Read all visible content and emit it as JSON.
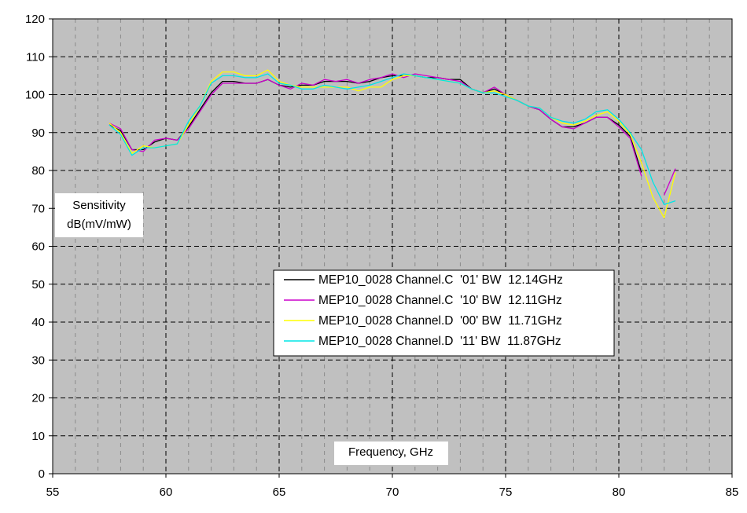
{
  "chart_data": {
    "type": "line",
    "xlabel": "Frequency, GHz",
    "ylabel_lines": [
      "Sensitivity",
      "dB(mV/mW)"
    ],
    "xlim": [
      55,
      85
    ],
    "ylim": [
      0,
      120
    ],
    "x_ticks": [
      "55",
      "60",
      "65",
      "70",
      "75",
      "80",
      "85"
    ],
    "y_ticks": [
      "0",
      "10",
      "20",
      "30",
      "40",
      "50",
      "60",
      "70",
      "80",
      "90",
      "100",
      "110",
      "120"
    ],
    "grid": true,
    "legend_position": "center",
    "plot_background": "#c0c0c0",
    "series": [
      {
        "name": "MEP10_0028 Channel.C  '01' BW  12.14GHz",
        "color": "#000000",
        "x": [
          57.5,
          58,
          58.5,
          59,
          59.5,
          60,
          60.5,
          61,
          61.5,
          62,
          62.5,
          63,
          63.5,
          64,
          64.5,
          65,
          65.5,
          66,
          66.5,
          67,
          67.5,
          68,
          68.5,
          69,
          69.5,
          70,
          70.5,
          71,
          71.5,
          72,
          72.5,
          73,
          73.5,
          74,
          74.5,
          75,
          75.5,
          76,
          76.5,
          77,
          77.5,
          78,
          78.5,
          79,
          79.5,
          80,
          80.5,
          81
        ],
        "y": [
          92,
          90.5,
          85.5,
          85.5,
          87.5,
          88.5,
          88,
          91.5,
          96,
          100.5,
          103.5,
          103.5,
          103,
          103,
          104,
          102.5,
          102,
          102.5,
          102.5,
          103.5,
          103.5,
          103.5,
          103,
          103.5,
          104.5,
          105,
          105,
          105,
          104.5,
          104.5,
          104,
          104,
          101.5,
          100.5,
          101.5,
          100,
          98.5,
          97,
          96,
          93.5,
          91.5,
          91.5,
          92.5,
          94,
          94,
          92,
          89,
          79.5
        ]
      },
      {
        "name": "MEP10_0028 Channel.C  '10' BW  12.11GHz",
        "color": "#cc00cc",
        "x": [
          57.5,
          58,
          58.5,
          59,
          59.5,
          60,
          60.5,
          61,
          61.5,
          62,
          62.5,
          63,
          63.5,
          64,
          64.5,
          65,
          65.5,
          66,
          66.5,
          67,
          67.5,
          68,
          68.5,
          69,
          69.5,
          70,
          70.5,
          71,
          71.5,
          72,
          72.5,
          73,
          73.5,
          74,
          74.5,
          75,
          75.5,
          76,
          76.5,
          77,
          77.5,
          78,
          78.5,
          79,
          79.5,
          80,
          80.5,
          81,
          81.5,
          82,
          82.5
        ],
        "y": [
          92.5,
          91,
          85.5,
          85,
          88,
          88.5,
          88,
          91,
          95.5,
          100,
          103,
          103,
          103,
          103,
          104,
          102.5,
          101.5,
          103,
          102.5,
          104,
          103.5,
          104,
          103,
          104,
          104.5,
          105.5,
          104.5,
          105.5,
          105,
          104.5,
          104,
          103.5,
          101.5,
          100.5,
          102,
          100,
          98.5,
          97,
          96,
          93.5,
          91.5,
          91,
          92.5,
          94,
          94,
          91.5,
          88.5,
          78.5,
          null,
          73.5,
          80.5
        ]
      },
      {
        "name": "MEP10_0028 Channel.D  '00' BW  11.71GHz",
        "color": "#ffff00",
        "x": [
          57.5,
          58,
          58.5,
          59,
          59.5,
          60,
          60.5,
          61,
          61.5,
          62,
          62.5,
          63,
          63.5,
          64,
          64.5,
          65,
          65.5,
          66,
          66.5,
          67,
          67.5,
          68,
          68.5,
          69,
          69.5,
          70,
          70.5,
          71,
          71.5,
          72,
          72.5,
          73,
          73.5,
          74,
          74.5,
          75,
          75.5,
          76,
          76.5,
          77,
          77.5,
          78,
          78.5,
          79,
          79.5,
          80,
          80.5,
          81,
          81.5,
          82,
          82.5
        ],
        "y": [
          92.5,
          90,
          84.5,
          86.5,
          86,
          86.5,
          87,
          92,
          97,
          103.5,
          106,
          106,
          105,
          105,
          106.5,
          103.5,
          102.5,
          102,
          102,
          102,
          102,
          102,
          101,
          102,
          102,
          104,
          105,
          105,
          104.5,
          104,
          103.5,
          103,
          101.5,
          100.5,
          101,
          100,
          98.5,
          97,
          96.5,
          94,
          92.5,
          92,
          93,
          94.5,
          95.5,
          93,
          89.5,
          82,
          73,
          67.5,
          79.5
        ]
      },
      {
        "name": "MEP10_0028 Channel.D  '11' BW  11.87GHz",
        "color": "#00e6e6",
        "x": [
          57.5,
          58,
          58.5,
          59,
          59.5,
          60,
          60.5,
          61,
          61.5,
          62,
          62.5,
          63,
          63.5,
          64,
          64.5,
          65,
          65.5,
          66,
          66.5,
          67,
          67.5,
          68,
          68.5,
          69,
          69.5,
          70,
          70.5,
          71,
          71.5,
          72,
          72.5,
          73,
          73.5,
          74,
          74.5,
          75,
          75.5,
          76,
          76.5,
          77,
          77.5,
          78,
          78.5,
          79,
          79.5,
          80,
          80.5,
          81,
          81.5,
          82,
          82.5
        ],
        "y": [
          92,
          89.5,
          84,
          86,
          86,
          86.5,
          87,
          93,
          97,
          103,
          105,
          105,
          104.5,
          104.5,
          105.5,
          103,
          102.5,
          101.5,
          101.5,
          102.5,
          102,
          101.5,
          102,
          102.5,
          103.5,
          104.5,
          105.5,
          105,
          104.5,
          104,
          103.5,
          103,
          101.5,
          100.5,
          100.5,
          99.5,
          98.5,
          97,
          96.5,
          94,
          93,
          92.5,
          93.5,
          95.5,
          96,
          93.5,
          90,
          85.5,
          77,
          71,
          72
        ]
      }
    ]
  }
}
